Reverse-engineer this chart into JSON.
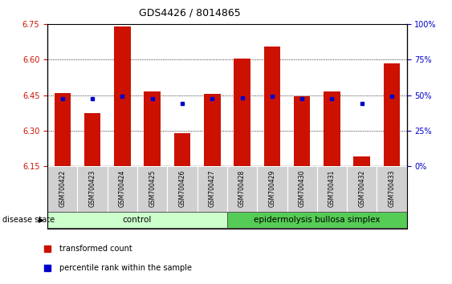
{
  "title": "GDS4426 / 8014865",
  "samples": [
    "GSM700422",
    "GSM700423",
    "GSM700424",
    "GSM700425",
    "GSM700426",
    "GSM700427",
    "GSM700428",
    "GSM700429",
    "GSM700430",
    "GSM700431",
    "GSM700432",
    "GSM700433"
  ],
  "transformed_counts": [
    6.46,
    6.375,
    6.74,
    6.465,
    6.29,
    6.455,
    6.605,
    6.655,
    6.445,
    6.465,
    6.19,
    6.585
  ],
  "percentile_ranks": [
    6.435,
    6.435,
    6.445,
    6.435,
    6.415,
    6.435,
    6.44,
    6.445,
    6.435,
    6.435,
    6.415,
    6.445
  ],
  "baseline": 6.15,
  "ylim_left": [
    6.15,
    6.75
  ],
  "yticks_left": [
    6.15,
    6.3,
    6.45,
    6.6,
    6.75
  ],
  "yticks_right": [
    0,
    25,
    50,
    75,
    100
  ],
  "bar_color": "#cc1100",
  "percentile_color": "#0000cc",
  "control_group": [
    "GSM700422",
    "GSM700423",
    "GSM700424",
    "GSM700425",
    "GSM700426",
    "GSM700427"
  ],
  "disease_group": [
    "GSM700428",
    "GSM700429",
    "GSM700430",
    "GSM700431",
    "GSM700432",
    "GSM700433"
  ],
  "control_label": "control",
  "disease_label": "epidermolysis bullosa simplex",
  "control_bg": "#ccffcc",
  "disease_bg": "#55cc55",
  "disease_state_label": "disease state",
  "legend_bar_label": "transformed count",
  "legend_pct_label": "percentile rank within the sample",
  "tick_label_color_left": "#cc1100",
  "tick_label_color_right": "#0000cc",
  "bar_width": 0.55,
  "xlim": [
    -0.5,
    11.5
  ]
}
